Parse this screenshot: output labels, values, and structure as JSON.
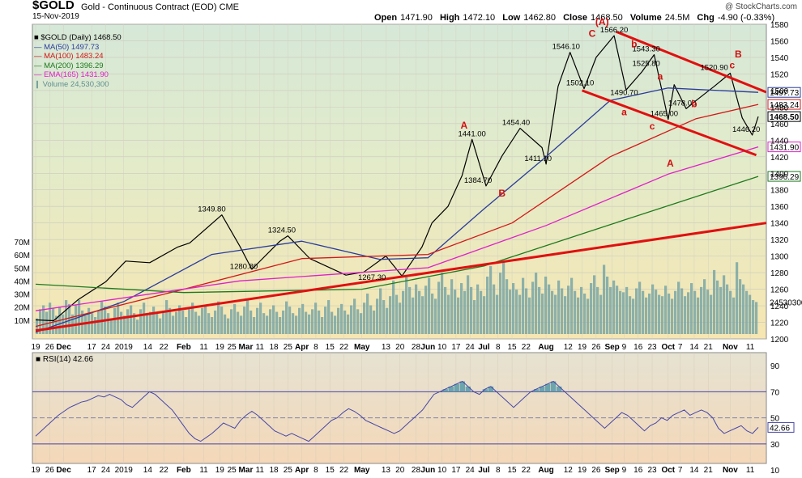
{
  "header": {
    "ticker": "$GOLD",
    "description": "Gold - Continuous Contract (EOD) CME",
    "date": "15-Nov-2019",
    "copyright": "@ StockCharts.com",
    "open_label": "Open",
    "open": "1471.90",
    "high_label": "High",
    "high": "1472.10",
    "low_label": "Low",
    "low": "1462.80",
    "close_label": "Close",
    "close": "1468.50",
    "volume_label": "Volume",
    "volume": "24.5M",
    "chg_label": "Chg",
    "chg": "-4.90 (-0.33%)"
  },
  "legend": [
    {
      "label": "$GOLD (Daily) 1468.50",
      "color": "#000000"
    },
    {
      "label": "MA(50) 1497.73",
      "color": "#2a3c9c"
    },
    {
      "label": "MA(100) 1483.24",
      "color": "#d21818"
    },
    {
      "label": "MA(200) 1396.29",
      "color": "#1e7a1e"
    },
    {
      "label": "EMA(165) 1431.90",
      "color": "#e020c8"
    },
    {
      "label": "Volume 24,530,300",
      "color": "#5f8f8f"
    }
  ],
  "colors": {
    "price": "#000000",
    "ma50": "#2a3c9c",
    "ma100": "#d21818",
    "ma200": "#1e7a1e",
    "ema165": "#e020c8",
    "volume": "#7aa6a6",
    "trendline": "#e01010",
    "annotation": "#d01010",
    "rsi_line": "#4646a8",
    "rsi_fill": "#5f9fa8"
  },
  "x_axis": {
    "ticks": [
      "19",
      "26",
      "Dec",
      "17",
      "24",
      "2019",
      "14",
      "22",
      "Feb",
      "11",
      "19",
      "25",
      "Mar",
      "11",
      "18",
      "25",
      "Apr",
      "8",
      "15",
      "22",
      "May",
      "13",
      "20",
      "28",
      "Jun",
      "10",
      "17",
      "24",
      "Jul",
      "8",
      "15",
      "22",
      "Aug",
      "12",
      "19",
      "26",
      "Sep",
      "9",
      "16",
      "23",
      "Oct",
      "7",
      "14",
      "21",
      "Nov",
      "11"
    ]
  },
  "chart_data": [
    {
      "type": "line",
      "title": "$GOLD (Daily)",
      "x_start": "2018-11-19",
      "x_end": "2019-11-15",
      "ylim": [
        1200,
        1580
      ],
      "y_ticks": [
        1200,
        1220,
        1240,
        1260,
        1280,
        1300,
        1320,
        1340,
        1360,
        1380,
        1400,
        1420,
        1440,
        1460,
        1480,
        1500,
        1520,
        1540,
        1560,
        1580
      ],
      "series": [
        {
          "name": "$GOLD (Daily)",
          "points": [
            [
              "2018-11-19",
              1223
            ],
            [
              "2018-11-28",
              1222
            ],
            [
              "2018-12-10",
              1247
            ],
            [
              "2018-12-24",
              1269
            ],
            [
              "2019-01-03",
              1294
            ],
            [
              "2019-01-15",
              1292
            ],
            [
              "2019-01-29",
              1311
            ],
            [
              "2019-02-04",
              1316
            ],
            [
              "2019-02-20",
              1349.8
            ],
            [
              "2019-03-01",
              1312
            ],
            [
              "2019-03-07",
              1284
            ],
            [
              "2019-03-21",
              1318
            ],
            [
              "2019-03-25",
              1324.5
            ],
            [
              "2019-04-05",
              1297
            ],
            [
              "2019-04-23",
              1277
            ],
            [
              "2019-05-02",
              1280.8
            ],
            [
              "2019-05-13",
              1300
            ],
            [
              "2019-05-21",
              1276
            ],
            [
              "2019-05-31",
              1311
            ],
            [
              "2019-06-05",
              1340
            ],
            [
              "2019-06-13",
              1360
            ],
            [
              "2019-06-20",
              1397
            ],
            [
              "2019-06-25",
              1441
            ],
            [
              "2019-07-02",
              1384.7
            ],
            [
              "2019-07-10",
              1421
            ],
            [
              "2019-07-19",
              1454.4
            ],
            [
              "2019-07-30",
              1431
            ],
            [
              "2019-08-01",
              1411.1
            ],
            [
              "2019-08-07",
              1505
            ],
            [
              "2019-08-13",
              1546.1
            ],
            [
              "2019-08-20",
              1502.1
            ],
            [
              "2019-08-26",
              1540
            ],
            [
              "2019-09-04",
              1566.2
            ],
            [
              "2019-09-10",
              1500.7
            ],
            [
              "2019-09-18",
              1523
            ],
            [
              "2019-09-24",
              1543.3
            ],
            [
              "2019-10-01",
              1465
            ],
            [
              "2019-10-04",
              1507
            ],
            [
              "2019-10-10",
              1478
            ],
            [
              "2019-10-15",
              1488
            ],
            [
              "2019-10-24",
              1505
            ],
            [
              "2019-11-01",
              1520.9
            ],
            [
              "2019-11-07",
              1467
            ],
            [
              "2019-11-12",
              1446.2
            ],
            [
              "2019-11-15",
              1468.5
            ]
          ]
        },
        {
          "name": "MA(50)",
          "points": [
            [
              "2018-11-19",
              1208
            ],
            [
              "2019-01-02",
              1245
            ],
            [
              "2019-02-15",
              1302
            ],
            [
              "2019-04-01",
              1318
            ],
            [
              "2019-05-10",
              1296
            ],
            [
              "2019-06-03",
              1298
            ],
            [
              "2019-07-01",
              1357
            ],
            [
              "2019-08-01",
              1420
            ],
            [
              "2019-09-02",
              1488
            ],
            [
              "2019-10-01",
              1503
            ],
            [
              "2019-11-15",
              1497.73
            ]
          ]
        },
        {
          "name": "MA(100)",
          "points": [
            [
              "2018-11-19",
              1215
            ],
            [
              "2019-02-01",
              1260
            ],
            [
              "2019-04-01",
              1297
            ],
            [
              "2019-06-03",
              1302
            ],
            [
              "2019-07-15",
              1340
            ],
            [
              "2019-09-02",
              1420
            ],
            [
              "2019-10-15",
              1466
            ],
            [
              "2019-11-15",
              1483.24
            ]
          ]
        },
        {
          "name": "MA(200)",
          "points": [
            [
              "2018-11-19",
              1266
            ],
            [
              "2019-02-01",
              1256
            ],
            [
              "2019-05-01",
              1260
            ],
            [
              "2019-07-01",
              1288
            ],
            [
              "2019-09-02",
              1338
            ],
            [
              "2019-11-15",
              1396.29
            ]
          ]
        },
        {
          "name": "EMA(165)",
          "points": [
            [
              "2018-11-19",
              1234
            ],
            [
              "2019-03-01",
              1270
            ],
            [
              "2019-06-03",
              1286
            ],
            [
              "2019-08-01",
              1337
            ],
            [
              "2019-10-01",
              1399
            ],
            [
              "2019-11-15",
              1431.9
            ]
          ]
        }
      ],
      "trendlines": [
        [
          [
            "2018-11-19",
            1210
          ],
          [
            "2019-11-19",
            1340
          ]
        ],
        [
          [
            "2019-09-05",
            1571
          ],
          [
            "2019-11-19",
            1498
          ]
        ],
        [
          [
            "2019-08-19",
            1500
          ],
          [
            "2019-11-14",
            1422
          ]
        ]
      ],
      "price_labels": [
        {
          "text": "1349.80",
          "x": "2019-02-15",
          "y": 1349.8
        },
        {
          "text": "1324.50",
          "x": "2019-03-22",
          "y": 1324.5
        },
        {
          "text": "1280.80",
          "x": "2019-03-03",
          "y": 1280.8
        },
        {
          "text": "1267.30",
          "x": "2019-05-06",
          "y": 1267.3
        },
        {
          "text": "1441.00",
          "x": "2019-06-25",
          "y": 1441.0
        },
        {
          "text": "1454.40",
          "x": "2019-07-17",
          "y": 1454.4
        },
        {
          "text": "1384.70",
          "x": "2019-06-28",
          "y": 1384.7
        },
        {
          "text": "1411.10",
          "x": "2019-07-28",
          "y": 1411.1
        },
        {
          "text": "1546.10",
          "x": "2019-08-11",
          "y": 1546.1
        },
        {
          "text": "1566.20",
          "x": "2019-09-04",
          "y": 1566.2
        },
        {
          "text": "1502.10",
          "x": "2019-08-18",
          "y": 1502.1
        },
        {
          "text": "1543.30",
          "x": "2019-09-20",
          "y": 1543.3
        },
        {
          "text": "1525.80",
          "x": "2019-09-20",
          "y": 1525.8
        },
        {
          "text": "1490.70",
          "x": "2019-09-09",
          "y": 1490.7
        },
        {
          "text": "1465.00",
          "x": "2019-09-29",
          "y": 1465.0
        },
        {
          "text": "1478.00",
          "x": "2019-10-08",
          "y": 1478.0
        },
        {
          "text": "1520.90",
          "x": "2019-10-24",
          "y": 1520.9
        },
        {
          "text": "1446.20",
          "x": "2019-11-09",
          "y": 1446.2
        }
      ],
      "wave_labels": [
        {
          "text": "A",
          "x": "2019-06-21",
          "y": 1454
        },
        {
          "text": "B",
          "x": "2019-07-10",
          "y": 1372
        },
        {
          "text": "C",
          "x": "2019-08-24",
          "y": 1565
        },
        {
          "text": "(A)",
          "x": "2019-08-29",
          "y": 1579
        },
        {
          "text": "b",
          "x": "2019-09-14",
          "y": 1552
        },
        {
          "text": "a",
          "x": "2019-09-09",
          "y": 1470
        },
        {
          "text": "c",
          "x": "2019-09-23",
          "y": 1453
        },
        {
          "text": "a",
          "x": "2019-09-27",
          "y": 1513
        },
        {
          "text": "b",
          "x": "2019-10-14",
          "y": 1480
        },
        {
          "text": "c",
          "x": "2019-11-02",
          "y": 1527
        },
        {
          "text": "B",
          "x": "2019-11-05",
          "y": 1540
        },
        {
          "text": "A",
          "x": "2019-10-02",
          "y": 1408
        }
      ],
      "price_tags": [
        {
          "value": "1497.73",
          "y": 1497.73,
          "color": "#2a3c9c"
        },
        {
          "value": "1483.24",
          "y": 1483.24,
          "color": "#d21818"
        },
        {
          "value": "1468.50",
          "y": 1468.5,
          "color": "#000000"
        },
        {
          "value": "1431.90",
          "y": 1431.9,
          "color": "#e020c8"
        },
        {
          "value": "1396.29",
          "y": 1396.29,
          "color": "#1e7a1e"
        }
      ]
    },
    {
      "type": "bar",
      "title": "Volume",
      "ylabel": "",
      "y_ticks": [
        "10M",
        "20M",
        "30M",
        "40M",
        "50M",
        "60M",
        "70M"
      ],
      "ylim": [
        0,
        70
      ],
      "unit": "M",
      "last_value_label": "24530300",
      "values": [
        12,
        19,
        22,
        17,
        24,
        20,
        14,
        21,
        15,
        26,
        23,
        15,
        22,
        26,
        18,
        14,
        20,
        16,
        13,
        18,
        25,
        21,
        16,
        12,
        20,
        24,
        17,
        14,
        19,
        22,
        16,
        11,
        19,
        24,
        15,
        17,
        21,
        16,
        12,
        18,
        26,
        20,
        14,
        17,
        22,
        18,
        13,
        19,
        24,
        17,
        14,
        20,
        22,
        16,
        13,
        18,
        25,
        21,
        15,
        12,
        19,
        23,
        17,
        14,
        21,
        26,
        18,
        13,
        20,
        24,
        16,
        14,
        19,
        22,
        17,
        13,
        18,
        25,
        21,
        16,
        14,
        20,
        23,
        17,
        15,
        19,
        24,
        18,
        13,
        21,
        26,
        17,
        14,
        20,
        23,
        18,
        15,
        22,
        27,
        19,
        16,
        24,
        31,
        22,
        18,
        27,
        35,
        26,
        20,
        29,
        41,
        30,
        24,
        33,
        45,
        36,
        28,
        38,
        33,
        29,
        37,
        43,
        31,
        27,
        40,
        47,
        36,
        30,
        42,
        34,
        28,
        39,
        33,
        45,
        36,
        26,
        38,
        33,
        29,
        44,
        52,
        38,
        30,
        47,
        56,
        42,
        34,
        39,
        34,
        30,
        43,
        35,
        28,
        40,
        47,
        36,
        31,
        44,
        38,
        33,
        30,
        41,
        35,
        29,
        37,
        43,
        33,
        28,
        36,
        31,
        27,
        39,
        45,
        36,
        30,
        53,
        44,
        36,
        41,
        37,
        33,
        32,
        36,
        29,
        27,
        35,
        40,
        33,
        28,
        31,
        38,
        34,
        30,
        29,
        37,
        31,
        27,
        33,
        40,
        35,
        29,
        32,
        39,
        33,
        28,
        36,
        42,
        34,
        30,
        49,
        41,
        36,
        45,
        38,
        33,
        28,
        55,
        42,
        38,
        33,
        30,
        26,
        24.53
      ]
    },
    {
      "type": "line",
      "title": "RSI(14)",
      "last_value": 42.66,
      "ylim": [
        15,
        100
      ],
      "y_ticks": [
        10,
        30,
        50,
        70,
        90
      ],
      "reference_lines": [
        70,
        50,
        30
      ],
      "values": [
        36,
        40,
        44,
        48,
        52,
        55,
        58,
        60,
        62,
        63,
        65,
        67,
        66,
        68,
        66,
        64,
        60,
        58,
        62,
        66,
        70,
        68,
        64,
        60,
        56,
        50,
        44,
        38,
        34,
        32,
        35,
        38,
        42,
        46,
        44,
        42,
        48,
        52,
        55,
        52,
        48,
        44,
        40,
        38,
        36,
        38,
        36,
        34,
        32,
        36,
        40,
        44,
        48,
        50,
        54,
        57,
        55,
        52,
        48,
        46,
        44,
        42,
        40,
        38,
        40,
        44,
        48,
        52,
        56,
        62,
        68,
        70,
        72,
        74,
        76,
        78,
        74,
        70,
        68,
        72,
        74,
        70,
        66,
        62,
        58,
        62,
        66,
        70,
        72,
        74,
        76,
        78,
        74,
        70,
        66,
        62,
        58,
        54,
        50,
        46,
        42,
        46,
        50,
        54,
        52,
        48,
        44,
        40,
        44,
        46,
        50,
        48,
        52,
        54,
        56,
        52,
        54,
        56,
        54,
        50,
        42,
        38,
        40,
        42,
        44,
        40,
        38,
        42.66
      ]
    }
  ],
  "rsi_panel": {
    "label": "RSI(14) 42.66",
    "value": "42.66",
    "x_ticks": [
      "19",
      "26",
      "Dec",
      "17",
      "24",
      "2019",
      "14",
      "22",
      "Feb",
      "11",
      "19",
      "25",
      "Mar",
      "11",
      "18",
      "25",
      "Apr",
      "8",
      "15",
      "22",
      "May",
      "13",
      "20",
      "28",
      "Jun",
      "10",
      "17",
      "24",
      "Jul",
      "8",
      "15",
      "22",
      "Aug",
      "12",
      "19",
      "26",
      "Sep",
      "9",
      "16",
      "23",
      "Oct",
      "7",
      "14",
      "21",
      "Nov",
      "11"
    ]
  }
}
